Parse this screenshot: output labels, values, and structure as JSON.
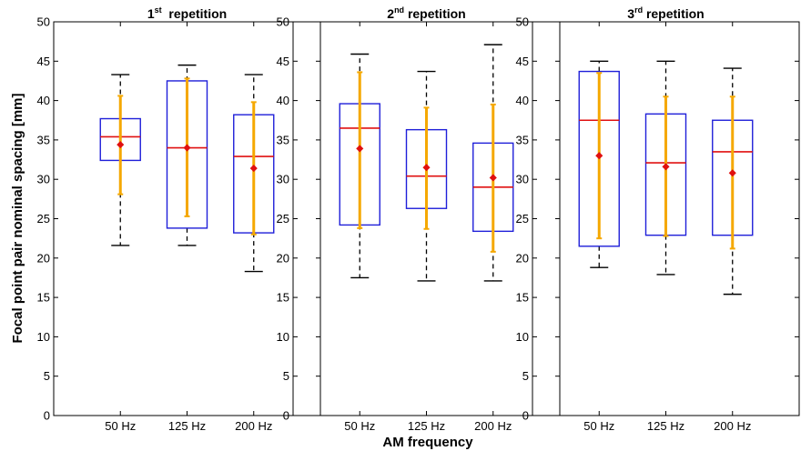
{
  "chart_data": {
    "type": "box",
    "ylabel": "Focal point pair nominal spacing [mm]",
    "xlabel": "AM frequency",
    "ylim": [
      0,
      50
    ],
    "yticks": [
      0,
      5,
      10,
      15,
      20,
      25,
      30,
      35,
      40,
      45,
      50
    ],
    "categories": [
      "50 Hz",
      "125 Hz",
      "200 Hz"
    ],
    "colors": {
      "box": "#1f1fd9",
      "median": "#e01010",
      "whisker": "#000000",
      "error_bar": "#f5a800",
      "mean_marker": "#e01010"
    },
    "panels": [
      {
        "title_prefix": "1",
        "title_sup": "st",
        "title_suffix": "  repetition",
        "boxes": [
          {
            "category": "50 Hz",
            "whisker_low": 21.6,
            "q1": 32.4,
            "median": 35.4,
            "q3": 37.7,
            "whisker_high": 43.3,
            "mean": 34.4,
            "sd_low": 28.1,
            "sd_high": 40.6
          },
          {
            "category": "125 Hz",
            "whisker_low": 21.6,
            "q1": 23.8,
            "median": 34.0,
            "q3": 42.5,
            "whisker_high": 44.5,
            "mean": 34.0,
            "sd_low": 25.3,
            "sd_high": 42.8
          },
          {
            "category": "200 Hz",
            "whisker_low": 18.3,
            "q1": 23.2,
            "median": 32.9,
            "q3": 38.2,
            "whisker_high": 43.3,
            "mean": 31.4,
            "sd_low": 23.0,
            "sd_high": 39.8
          }
        ]
      },
      {
        "title_prefix": "2",
        "title_sup": "nd",
        "title_suffix": " repetition",
        "boxes": [
          {
            "category": "50 Hz",
            "whisker_low": 17.5,
            "q1": 24.2,
            "median": 36.5,
            "q3": 39.6,
            "whisker_high": 45.9,
            "mean": 33.9,
            "sd_low": 23.8,
            "sd_high": 43.6
          },
          {
            "category": "125 Hz",
            "whisker_low": 17.1,
            "q1": 26.3,
            "median": 30.4,
            "q3": 36.3,
            "whisker_high": 43.7,
            "mean": 31.5,
            "sd_low": 23.7,
            "sd_high": 39.1
          },
          {
            "category": "200 Hz",
            "whisker_low": 17.1,
            "q1": 23.4,
            "median": 29.0,
            "q3": 34.6,
            "whisker_high": 47.1,
            "mean": 30.2,
            "sd_low": 20.8,
            "sd_high": 39.5
          }
        ]
      },
      {
        "title_prefix": "3",
        "title_sup": "rd",
        "title_suffix": " repetition",
        "boxes": [
          {
            "category": "50 Hz",
            "whisker_low": 18.8,
            "q1": 21.5,
            "median": 37.5,
            "q3": 43.7,
            "whisker_high": 45.0,
            "mean": 33.0,
            "sd_low": 22.5,
            "sd_high": 43.5
          },
          {
            "category": "125 Hz",
            "whisker_low": 17.9,
            "q1": 22.9,
            "median": 32.1,
            "q3": 38.3,
            "whisker_high": 45.0,
            "mean": 31.6,
            "sd_low": 22.8,
            "sd_high": 40.5
          },
          {
            "category": "200 Hz",
            "whisker_low": 15.4,
            "q1": 22.9,
            "median": 33.5,
            "q3": 37.5,
            "whisker_high": 44.1,
            "mean": 30.8,
            "sd_low": 21.2,
            "sd_high": 40.5
          }
        ]
      }
    ]
  }
}
